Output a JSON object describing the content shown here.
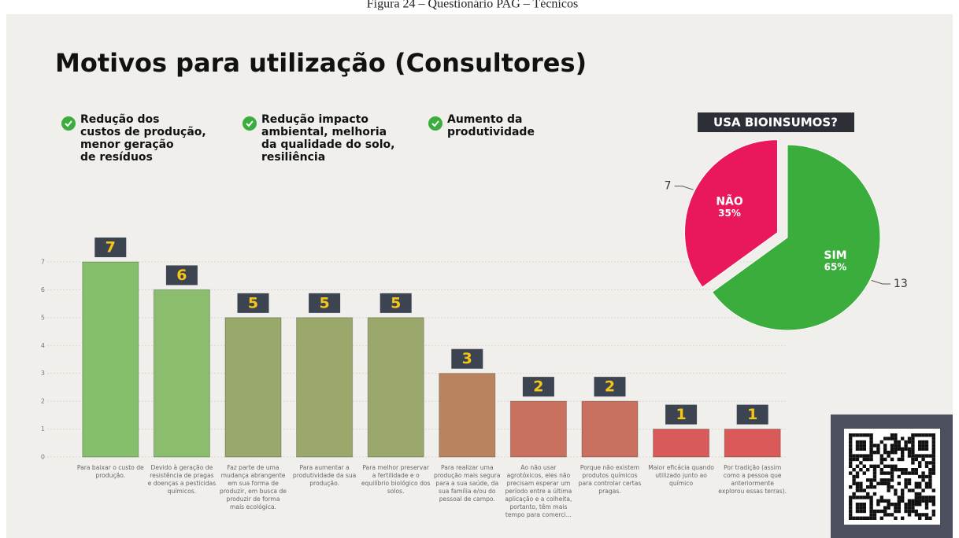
{
  "caption": "Figura 24 – Questionário PAG – Técnicos",
  "title": "Motivos para utilização (Consultores)",
  "bullets": [
    [
      "Redução dos",
      "custos de produção,",
      "menor geração",
      "de resíduos"
    ],
    [
      "Redução impacto",
      "ambiental, melhoria",
      "da qualidade do solo,",
      "resiliência"
    ],
    [
      "Aumento da",
      "produtividade"
    ]
  ],
  "chart_data": [
    {
      "type": "bar",
      "categories": [
        "Para baixar o custo de produção.",
        "Devido à geração de resistência de pragas e doenças a pesticidas químicos.",
        "Faz parte de uma mudança abrangente em sua forma de produzir, em busca de produzir de forma mais ecológica.",
        "Para aumentar a produtividade da sua produção.",
        "Para melhor preservar a fertilidade e o equilíbrio biológico dos solos.",
        "Para realizar uma produção mais segura para a sua saúde, da sua família e/ou do pessoal de campo.",
        "Ao não usar agrotóxicos, eles não precisam esperar um período entre a última aplicação e a colheita, portanto, têm mais tempo para comerci...",
        "Porque não existem produtos químicos para controlar certas pragas.",
        "Maior eficácia quando utilizado junto ao químico",
        "Por tradição (assim como a pessoa que anteriormente explorou essas terras)."
      ],
      "values": [
        7,
        6,
        5,
        5,
        5,
        3,
        2,
        2,
        1,
        1
      ],
      "colors": [
        "#86bf6b",
        "#8cbd6e",
        "#98a96b",
        "#9aa96b",
        "#9aa96b",
        "#b98360",
        "#c9705e",
        "#c9705e",
        "#d95a5a",
        "#da5a5a"
      ],
      "ylim": [
        0,
        7
      ],
      "yticks": [
        0,
        1,
        2,
        3,
        4,
        5,
        6,
        7
      ],
      "grid": true
    },
    {
      "type": "pie",
      "title": "USA BIOINSUMOS?",
      "categories": [
        "SIM",
        "NÃO"
      ],
      "values": [
        13,
        7
      ],
      "percent_labels": [
        "65%",
        "35%"
      ],
      "colors": [
        "#3aad3c",
        "#e8185a"
      ]
    }
  ]
}
